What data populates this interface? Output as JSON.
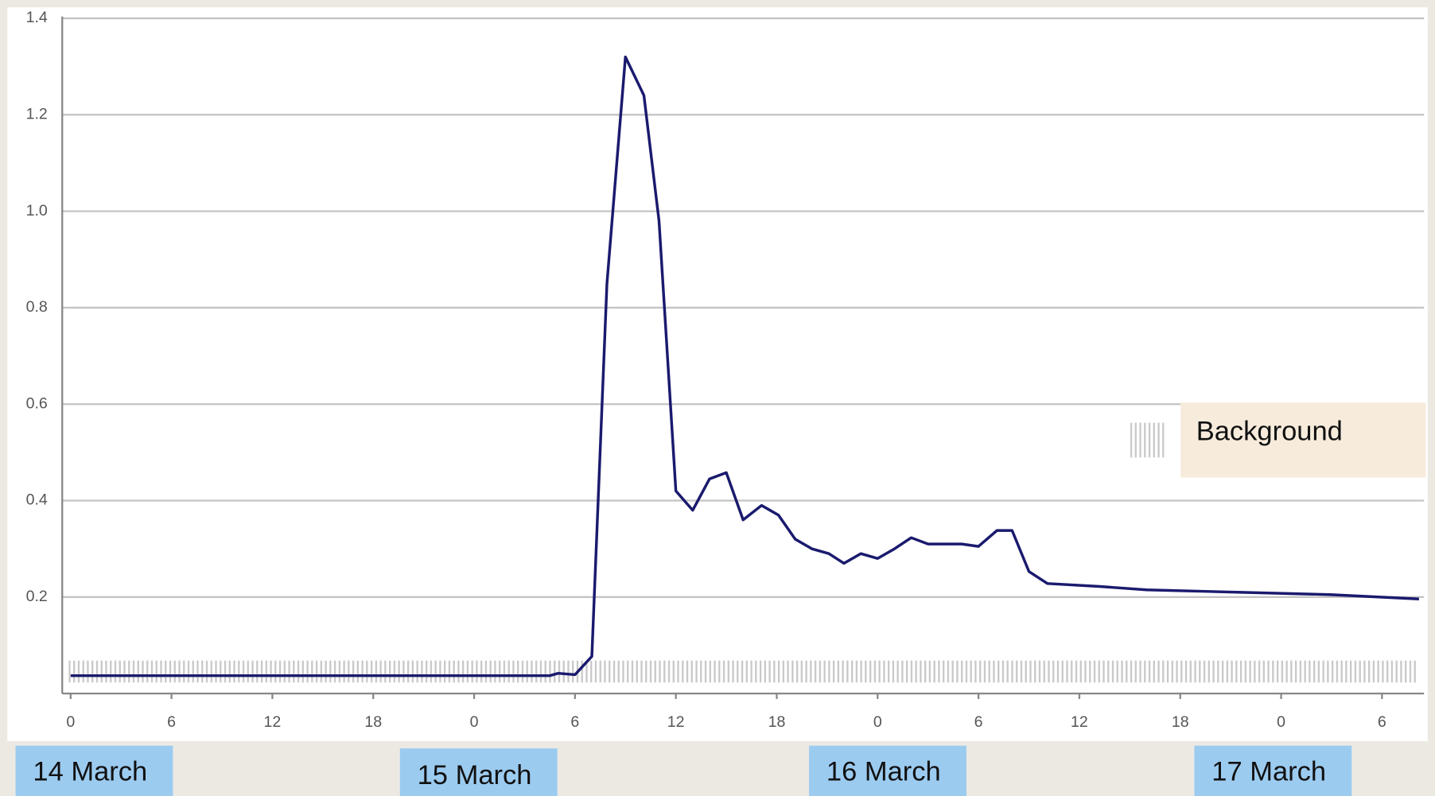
{
  "chart_data": {
    "type": "line",
    "x": [
      0,
      28.5,
      29,
      30,
      31,
      31.9,
      33,
      34.1,
      35,
      36,
      37,
      38,
      39,
      40,
      41.1,
      42.1,
      43.1,
      44.1,
      45.1,
      46,
      47,
      48,
      49,
      50,
      51,
      53,
      54,
      55.1,
      56,
      57,
      58.1,
      61.2,
      64,
      69.4,
      74.9,
      80.2
    ],
    "series": [
      {
        "color": "#1a1a6e",
        "values": [
          0.037,
          0.037,
          0.042,
          0.039,
          0.077,
          0.85,
          1.32,
          1.24,
          0.98,
          0.42,
          0.38,
          0.445,
          0.458,
          0.36,
          0.39,
          0.37,
          0.32,
          0.3,
          0.29,
          0.27,
          0.29,
          0.28,
          0.3,
          0.323,
          0.31,
          0.31,
          0.305,
          0.338,
          0.338,
          0.253,
          0.228,
          0.222,
          0.215,
          0.21,
          0.205,
          0.196
        ]
      }
    ],
    "xlim": [
      -0.5,
      80.5
    ],
    "xticks": [
      0,
      6,
      12,
      18,
      {
        "value": 24,
        "label": "0"
      },
      {
        "value": 30,
        "label": "6"
      },
      {
        "value": 36,
        "label": "12"
      },
      {
        "value": 42,
        "label": "18"
      },
      {
        "value": 48,
        "label": "0"
      },
      {
        "value": 54,
        "label": "6"
      },
      {
        "value": 60,
        "label": "12"
      },
      {
        "value": 66,
        "label": "18"
      },
      {
        "value": 72,
        "label": "0"
      },
      {
        "value": 78,
        "label": "6"
      }
    ],
    "ylim": [
      0,
      1.4
    ],
    "yticks": [
      0.2,
      0.4,
      0.6,
      0.8,
      {
        "value": 1.0,
        "label": "1.0"
      },
      1.2,
      1.4
    ],
    "grid": true,
    "annotations": [
      "14 March",
      "15 March",
      "16 March",
      "17 March",
      "Background"
    ]
  }
}
